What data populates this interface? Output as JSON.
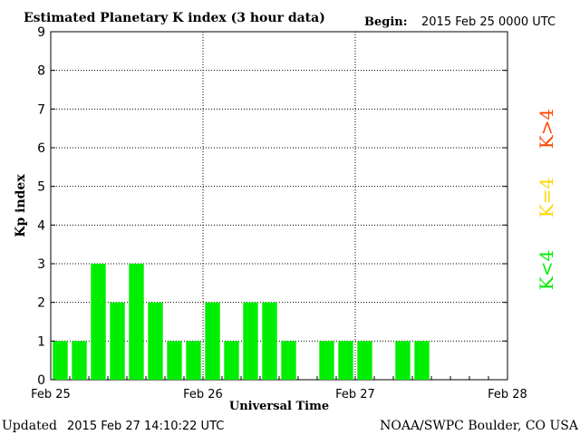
{
  "header": {
    "title": "Estimated Planetary K index (3 hour data)",
    "begin_label": "Begin:",
    "begin_value": "2015 Feb 25 0000 UTC"
  },
  "footer": {
    "updated_label": "Updated",
    "updated_value": "2015 Feb 27 14:10:22 UTC",
    "source": "NOAA/SWPC Boulder, CO USA"
  },
  "legend": {
    "items": [
      {
        "label": "K<4",
        "color": "#00ee00"
      },
      {
        "label": "K=4",
        "color": "#ffd700"
      },
      {
        "label": "K>4",
        "color": "#ff4500"
      }
    ]
  },
  "chart_data": {
    "type": "bar",
    "title": "Estimated Planetary K index (3 hour data)",
    "xlabel": "Universal Time",
    "ylabel": "Kp index",
    "ylim": [
      0,
      9
    ],
    "yticks": [
      0,
      1,
      2,
      3,
      4,
      5,
      6,
      7,
      8,
      9
    ],
    "xticks": [
      "Feb 25",
      "Feb 26",
      "Feb 27",
      "Feb 28"
    ],
    "grid": true,
    "bar_color": "#00ee00",
    "series": [
      {
        "values": [
          1,
          1,
          3,
          2,
          3,
          2,
          1,
          1,
          2,
          1,
          2,
          2,
          1,
          null,
          1,
          1,
          1,
          null,
          1,
          1,
          null,
          null,
          null,
          null
        ]
      }
    ]
  }
}
